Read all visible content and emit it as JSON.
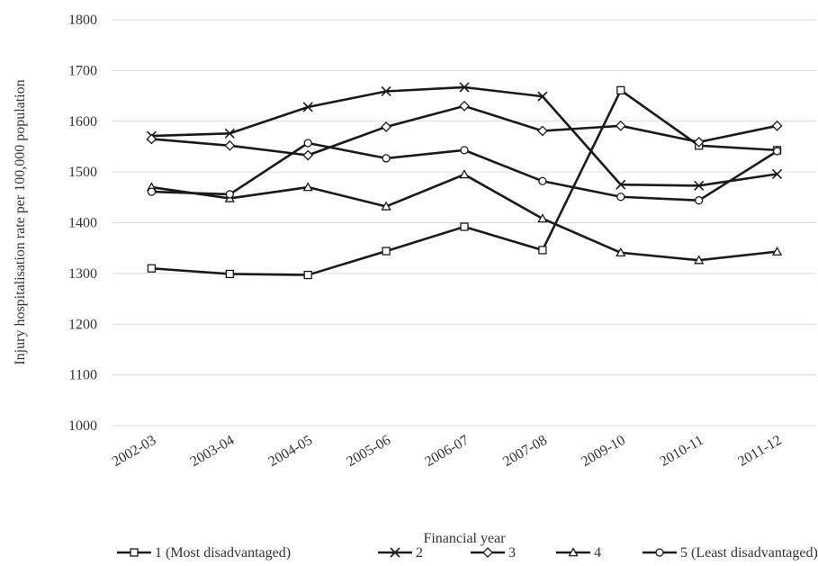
{
  "chart_data": {
    "type": "line",
    "title": "",
    "xlabel": "Financial year",
    "ylabel": "Injury hospitalisation rate per 100,000 population",
    "categories": [
      "2002-03",
      "2003-04",
      "2004-05",
      "2005-06",
      "2006-07",
      "2007-08",
      "2009-10",
      "2010-11",
      "2011-12"
    ],
    "ylim": [
      1000,
      1800
    ],
    "yticks": [
      1000,
      1100,
      1200,
      1300,
      1400,
      1500,
      1600,
      1700,
      1800
    ],
    "grid": true,
    "legend_position": "bottom",
    "series": [
      {
        "name": "1 (Most disadvantaged)",
        "marker": "square",
        "values": [
          1310,
          1299,
          1297,
          1344,
          1392,
          1346,
          1661,
          1552,
          1543
        ]
      },
      {
        "name": "2",
        "marker": "x",
        "values": [
          1571,
          1576,
          1628,
          1659,
          1667,
          1649,
          1475,
          1473,
          1496
        ]
      },
      {
        "name": "3",
        "marker": "diamond",
        "values": [
          1565,
          1552,
          1533,
          1589,
          1630,
          1581,
          1591,
          1559,
          1591
        ]
      },
      {
        "name": "4",
        "marker": "triangle",
        "values": [
          1470,
          1448,
          1470,
          1432,
          1495,
          1408,
          1341,
          1326,
          1343
        ]
      },
      {
        "name": "5 (Least disadvantaged)",
        "marker": "circle",
        "values": [
          1461,
          1456,
          1557,
          1527,
          1543,
          1482,
          1451,
          1444,
          1541
        ]
      }
    ],
    "colors": {
      "line": "#1a1a1a",
      "grid": "#d9d9d9",
      "text": "#333333"
    }
  }
}
